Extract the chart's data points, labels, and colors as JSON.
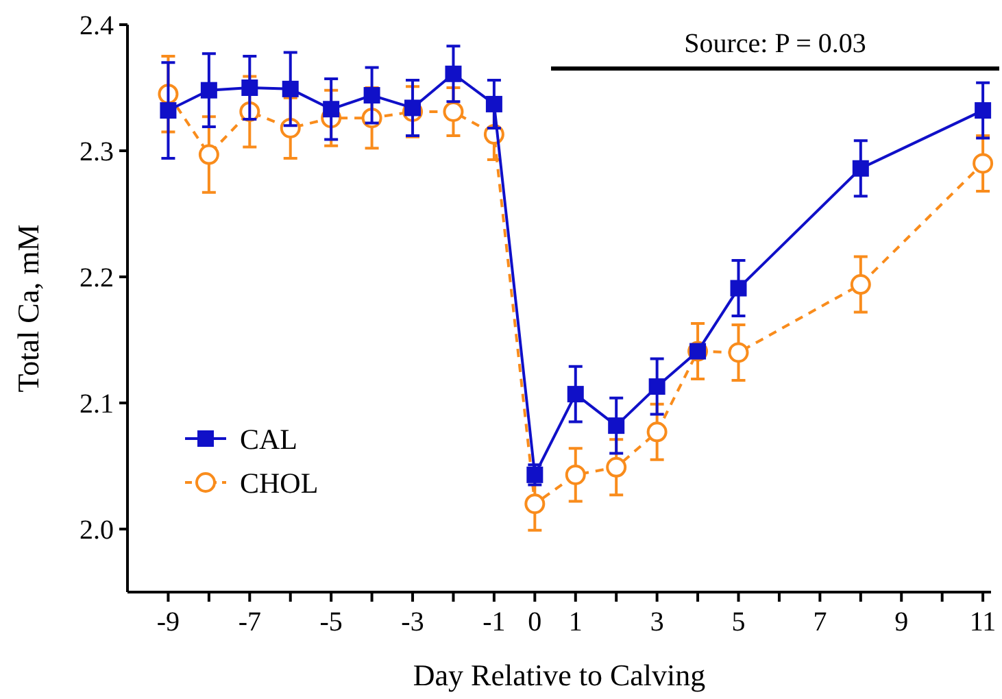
{
  "chart_data": {
    "type": "line",
    "xlabel": "Day Relative to Calving",
    "ylabel": "Total Ca, mM",
    "x": [
      -9,
      -8,
      -7,
      -6,
      -5,
      -4,
      -3,
      -2,
      -1,
      0,
      1,
      2,
      3,
      4,
      5,
      8,
      11
    ],
    "xlim": [
      -10,
      11.2
    ],
    "ylim": [
      1.95,
      2.4
    ],
    "xticks": [
      -9,
      {
        "value": -8,
        "label": null
      },
      -7,
      {
        "value": -6,
        "label": null
      },
      -5,
      {
        "value": -4,
        "label": null
      },
      -3,
      {
        "value": -2,
        "label": null
      },
      -1,
      0,
      1,
      {
        "value": 2,
        "label": null
      },
      3,
      {
        "value": 4,
        "label": null
      },
      5,
      {
        "value": 6,
        "label": null
      },
      7,
      {
        "value": 8,
        "label": null
      },
      9,
      {
        "value": 10,
        "label": null
      },
      11
    ],
    "yticks": [
      {
        "value": 2.0,
        "label": "2.0"
      },
      {
        "value": 2.1,
        "label": "2.1"
      },
      {
        "value": 2.2,
        "label": "2.2"
      },
      {
        "value": 2.3,
        "label": "2.3"
      },
      {
        "value": 2.4,
        "label": "2.4"
      }
    ],
    "series": [
      {
        "name": "CAL",
        "color": "#1010c8",
        "marker": "square",
        "line_style": "solid",
        "values": [
          2.332,
          2.348,
          2.35,
          2.349,
          2.333,
          2.344,
          2.334,
          2.361,
          2.337,
          2.043,
          2.107,
          2.082,
          2.113,
          2.141,
          2.191,
          2.286,
          2.332
        ],
        "errors": [
          0.038,
          0.029,
          0.025,
          0.029,
          0.024,
          0.022,
          0.022,
          0.022,
          0.019,
          0.008,
          0.022,
          0.022,
          0.022,
          null,
          0.022,
          0.022,
          0.022
        ]
      },
      {
        "name": "CHOL",
        "color": "#f98c1c",
        "marker": "circle",
        "line_style": "dashed",
        "values": [
          2.345,
          2.297,
          2.331,
          2.318,
          2.326,
          2.326,
          2.331,
          2.331,
          2.313,
          2.02,
          2.043,
          2.049,
          2.077,
          2.141,
          2.14,
          2.194,
          2.29
        ],
        "errors": [
          0.03,
          0.03,
          0.028,
          0.024,
          0.022,
          0.024,
          0.02,
          0.019,
          0.02,
          0.021,
          0.021,
          0.022,
          0.022,
          0.022,
          0.022,
          0.022,
          0.022
        ]
      }
    ],
    "annotations": [
      "Source: P = 0.03"
    ],
    "legend": "left"
  }
}
